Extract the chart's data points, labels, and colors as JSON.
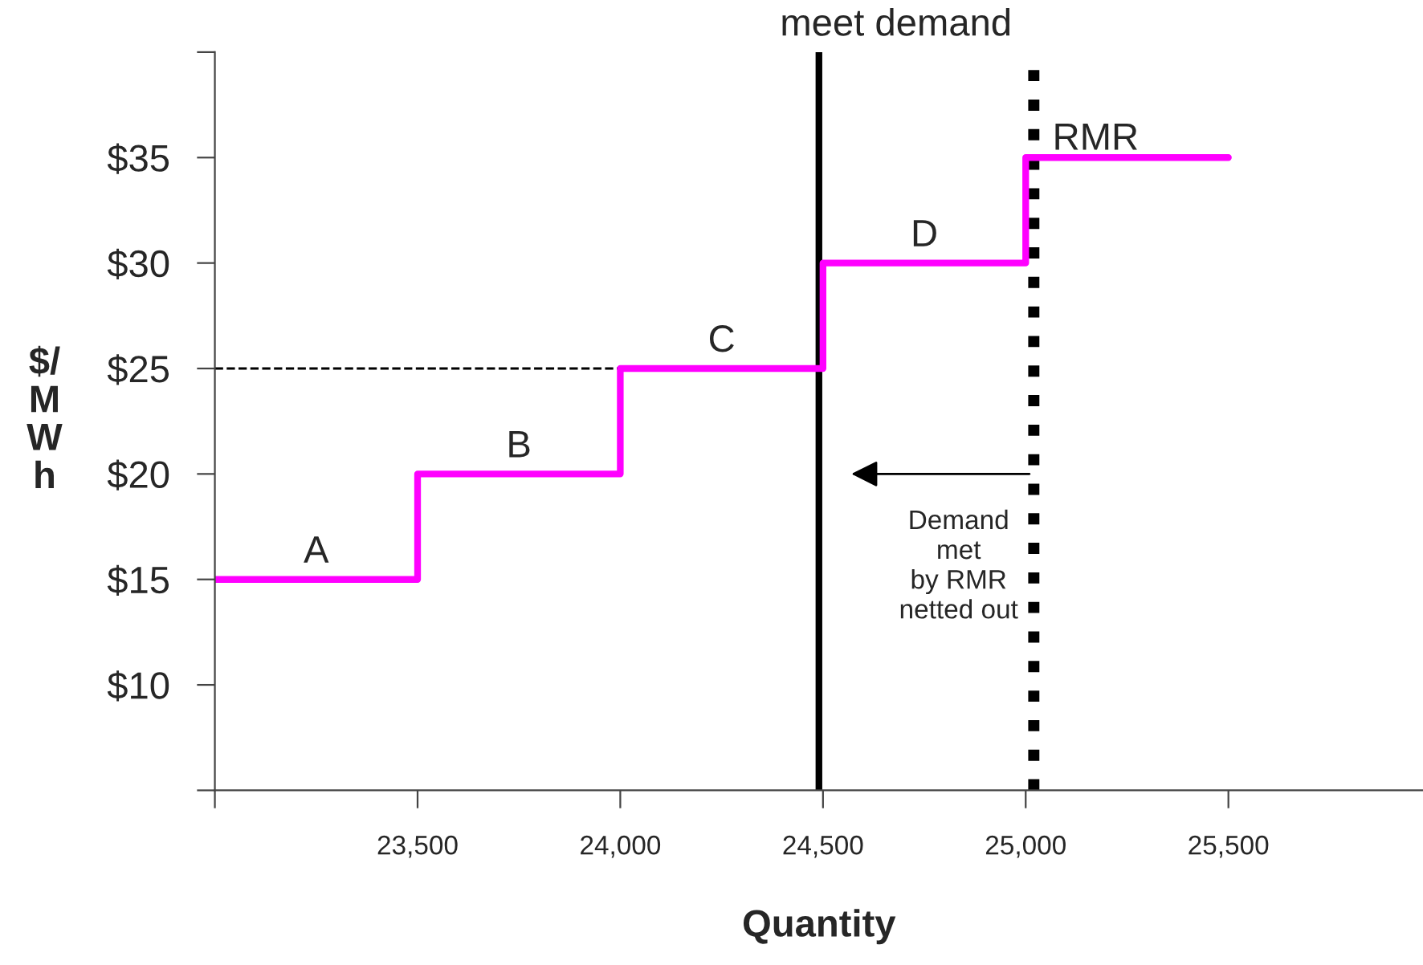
{
  "chart_data": {
    "type": "step",
    "xlabel": "Quantity",
    "ylabel": "$/MWh",
    "x": [
      23000,
      23500,
      24000,
      24500,
      25000,
      25500
    ],
    "series": [
      {
        "color": "#ff00ff",
        "values": [
          15,
          20,
          25,
          30,
          35,
          35
        ]
      }
    ],
    "xlim": [
      23000,
      25980
    ],
    "ylim": [
      5,
      40
    ],
    "xticks": [
      {
        "value": 23000,
        "label": null
      },
      {
        "value": 23500,
        "label": "23,500"
      },
      {
        "value": 24000,
        "label": "24,000"
      },
      {
        "value": 24500,
        "label": "24,500"
      },
      {
        "value": 25000,
        "label": "25,000"
      },
      {
        "value": 25500,
        "label": "25,500"
      }
    ],
    "yticks": [
      {
        "value": 5,
        "label": null
      },
      {
        "value": 10,
        "label": "$10"
      },
      {
        "value": 15,
        "label": "$15"
      },
      {
        "value": 20,
        "label": "$20"
      },
      {
        "value": 25,
        "label": "$25"
      },
      {
        "value": 30,
        "label": "$30"
      },
      {
        "value": 35,
        "label": "$35"
      },
      {
        "value": 40,
        "label": null
      }
    ],
    "ref_lines": [
      {
        "axis": "x",
        "value": 24490,
        "color": "#000000",
        "line_style": "solid"
      },
      {
        "axis": "x",
        "value": 25020,
        "color": "#000000",
        "line_style": "dotted"
      },
      {
        "axis": "y",
        "value": 25,
        "color": "#000000",
        "line_style": "dashed"
      }
    ],
    "annotations": [
      "meet demand",
      "A",
      "B",
      "C",
      "D",
      "RMR",
      "Demand\nmet\nby RMR\nnetted out"
    ],
    "grid": false,
    "legend": false,
    "line_style": "solid",
    "marker": "none"
  }
}
